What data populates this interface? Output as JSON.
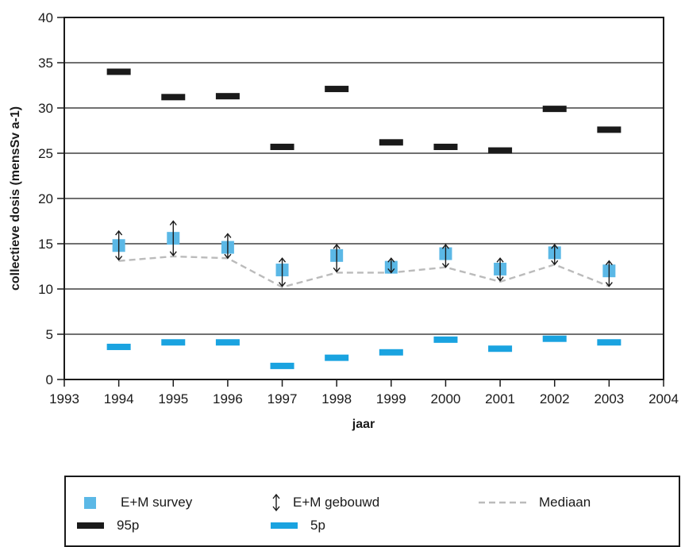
{
  "chart_data": {
    "type": "scatter",
    "title": "",
    "xlabel": "jaar",
    "ylabel": "collectieve dosis (mensSv a-1)",
    "xlim": [
      1993,
      2004
    ],
    "ylim": [
      0,
      40
    ],
    "x_ticks": [
      "1993",
      "1994",
      "1995",
      "1996",
      "1997",
      "1998",
      "1999",
      "2000",
      "2001",
      "2002",
      "2003",
      "2004"
    ],
    "y_ticks": [
      "0",
      "5",
      "10",
      "15",
      "20",
      "25",
      "30",
      "35",
      "40"
    ],
    "grid": "horizontal",
    "years": [
      1994,
      1995,
      1996,
      1997,
      1998,
      1999,
      2000,
      2001,
      2002,
      2003
    ],
    "series": [
      {
        "name": "E+M survey",
        "color": "#5bb8e6",
        "values": [
          14.8,
          15.6,
          14.6,
          12.1,
          13.7,
          12.4,
          13.9,
          12.2,
          14.0,
          12.0
        ]
      },
      {
        "name": "E+M gebouwd",
        "color": "#1a1a1a",
        "low": [
          13.2,
          13.7,
          13.4,
          10.3,
          11.9,
          11.8,
          12.4,
          10.9,
          12.7,
          10.3
        ],
        "high": [
          16.4,
          17.5,
          16.1,
          13.4,
          14.9,
          13.4,
          14.9,
          13.4,
          14.9,
          13.1
        ]
      },
      {
        "name": "Mediaan",
        "color": "#bbbbbb",
        "values": [
          13.1,
          13.6,
          13.4,
          10.2,
          11.8,
          11.8,
          12.4,
          10.8,
          12.7,
          10.3
        ]
      },
      {
        "name": "95p",
        "color": "#1a1a1a",
        "values": [
          34.0,
          31.2,
          31.3,
          25.7,
          32.1,
          26.2,
          25.7,
          25.3,
          29.9,
          27.6
        ]
      },
      {
        "name": "5p",
        "color": "#1aa3e0",
        "values": [
          3.6,
          4.1,
          4.1,
          1.5,
          2.4,
          3.0,
          4.4,
          3.4,
          4.5,
          4.1
        ]
      }
    ]
  },
  "legend": {
    "items": [
      {
        "label": "E+M survey",
        "symbol": "square"
      },
      {
        "label": "E+M gebouwd",
        "symbol": "double-arrow"
      },
      {
        "label": "Mediaan",
        "symbol": "dashed-line"
      },
      {
        "label": "95p",
        "symbol": "bar"
      },
      {
        "label": "5p",
        "symbol": "bar"
      }
    ]
  }
}
